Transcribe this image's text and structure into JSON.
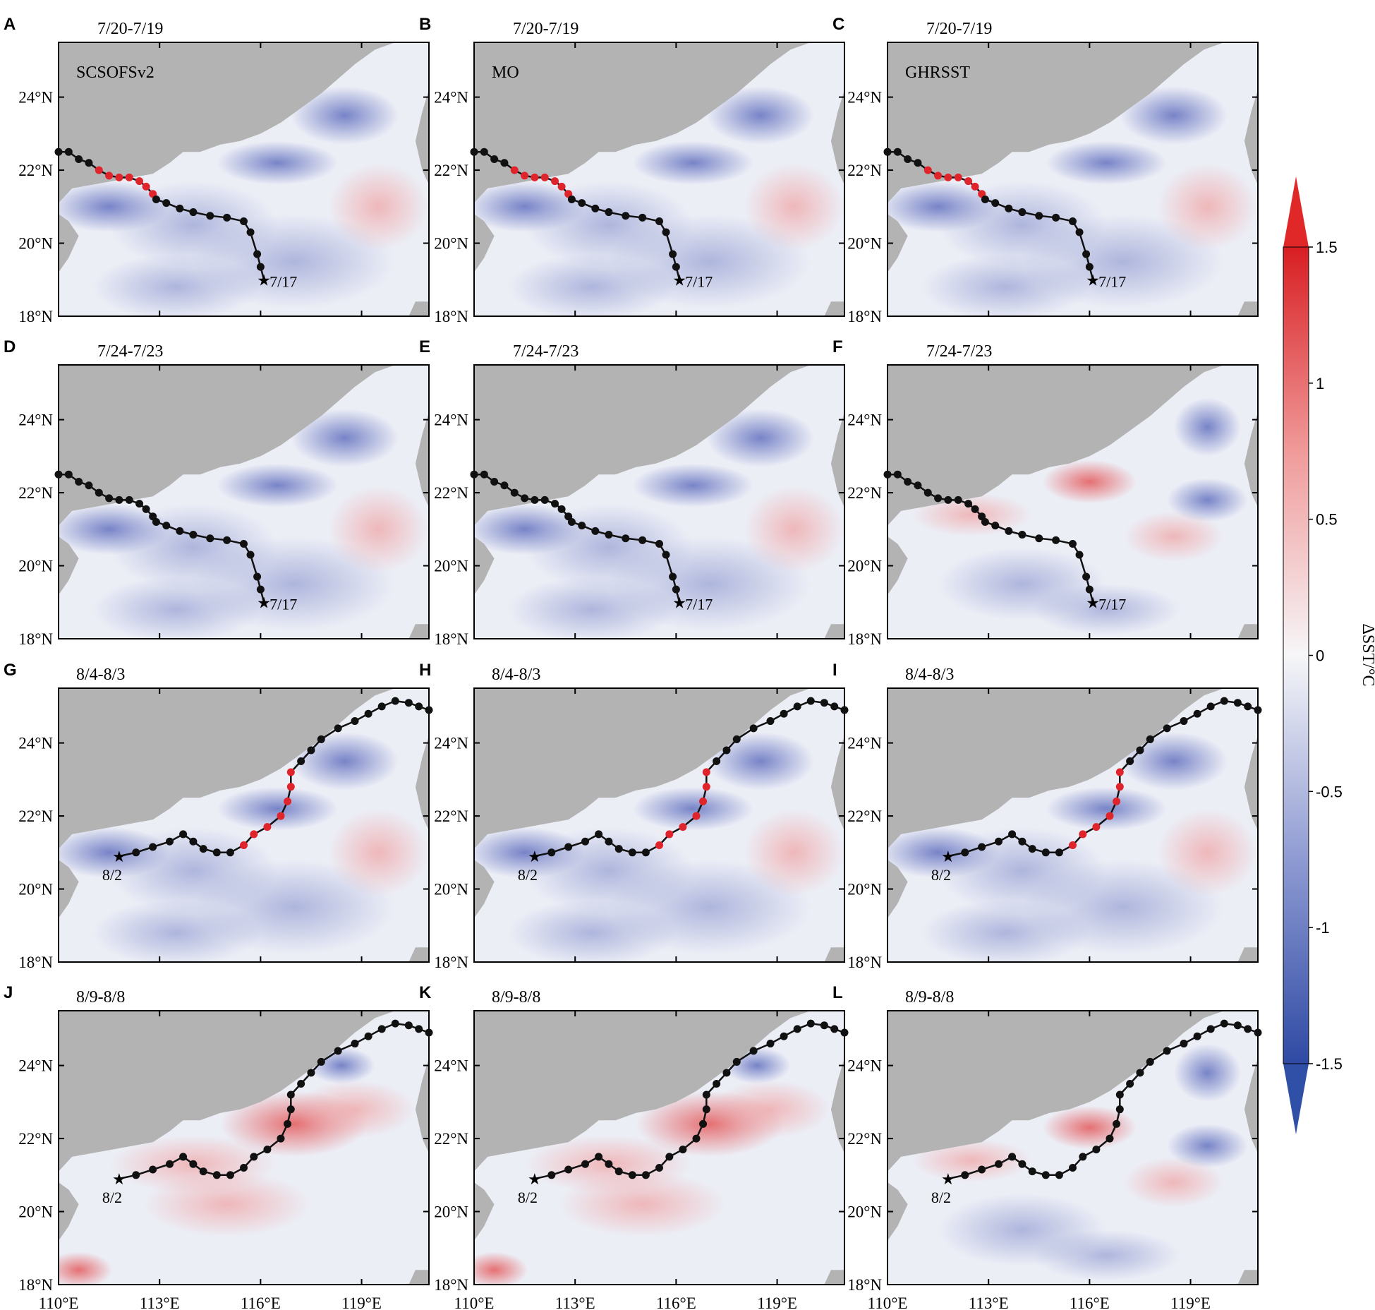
{
  "figure": {
    "colorbar": {
      "label": "ΔSST/°C",
      "ticks": [
        "1.5",
        "1",
        "0.5",
        "0",
        "-0.5",
        "-1",
        "-1.5"
      ],
      "low_color": "#3050a8",
      "mid_color": "#f4f4f8",
      "high_color": "#e02828"
    },
    "lat_ticks": [
      "24°N",
      "22°N",
      "20°N",
      "18°N"
    ],
    "lon_ticks": [
      "110°E",
      "113°E",
      "116°E",
      "119°E"
    ],
    "land_color": "#b3b3b3",
    "track_color": "#111111",
    "track_highlight_color": "#e0242c",
    "panels": [
      {
        "letter": "A",
        "date": "7/20-7/19",
        "model": "SCSOFSv2",
        "start_label": "7/17",
        "tint": "cool"
      },
      {
        "letter": "B",
        "date": "7/20-7/19",
        "model": "MO",
        "start_label": "7/17",
        "tint": "cool"
      },
      {
        "letter": "C",
        "date": "7/20-7/19",
        "model": "GHRSST",
        "start_label": "7/17",
        "tint": "cool"
      },
      {
        "letter": "D",
        "date": "7/24-7/23",
        "model": "",
        "start_label": "7/17",
        "tint": "cool"
      },
      {
        "letter": "E",
        "date": "7/24-7/23",
        "model": "",
        "start_label": "7/17",
        "tint": "cool"
      },
      {
        "letter": "F",
        "date": "7/24-7/23",
        "model": "",
        "start_label": "7/17",
        "tint": "mixed"
      },
      {
        "letter": "G",
        "date": "8/4-8/3",
        "model": "",
        "start_label": "8/2",
        "tint": "cool"
      },
      {
        "letter": "H",
        "date": "8/4-8/3",
        "model": "",
        "start_label": "8/2",
        "tint": "cool"
      },
      {
        "letter": "I",
        "date": "8/4-8/3",
        "model": "",
        "start_label": "8/2",
        "tint": "cool"
      },
      {
        "letter": "J",
        "date": "8/9-8/8",
        "model": "",
        "start_label": "8/2",
        "tint": "warm"
      },
      {
        "letter": "K",
        "date": "8/9-8/8",
        "model": "",
        "start_label": "8/2",
        "tint": "warm"
      },
      {
        "letter": "L",
        "date": "8/9-8/8",
        "model": "",
        "start_label": "8/2",
        "tint": "mixed"
      }
    ]
  }
}
